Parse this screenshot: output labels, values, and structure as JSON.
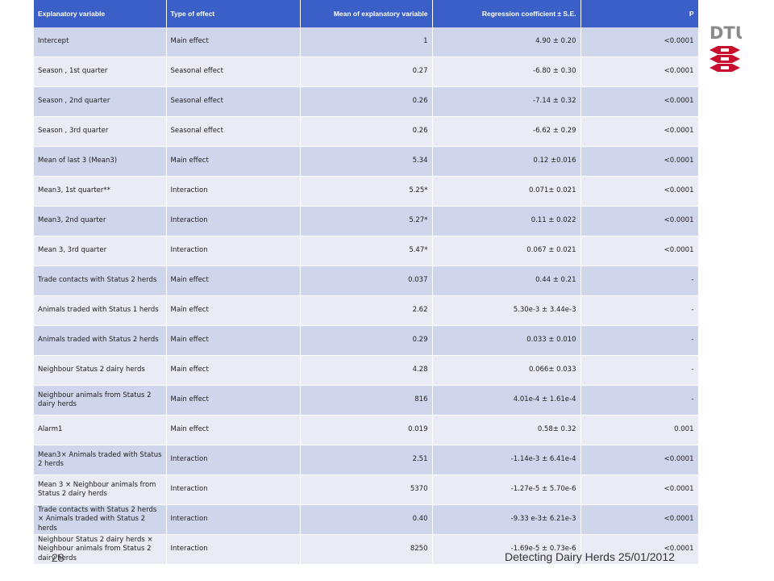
{
  "headers": [
    "Explanatory variable",
    "Type of effect",
    "Mean of explanatory variable",
    "Regression coefficient ± S.E.",
    "P"
  ],
  "rows": [
    [
      "Intercept",
      "Main effect",
      "1",
      "4.90 ± 0.20",
      "<0.0001"
    ],
    [
      "Season , 1st quarter",
      "Seasonal effect",
      "0.27",
      "-6.80 ± 0.30",
      "<0.0001"
    ],
    [
      "Season , 2nd quarter",
      "Seasonal effect",
      "0.26",
      "-7.14 ± 0.32",
      "<0.0001"
    ],
    [
      "Season , 3rd quarter",
      "Seasonal effect",
      "0.26",
      "-6.62 ± 0.29",
      "<0.0001"
    ],
    [
      "Mean of last 3 (Mean3)",
      "Main effect",
      "5.34",
      "0.12 ±0.016",
      "<0.0001"
    ],
    [
      "Mean3, 1st quarter**",
      "Interaction",
      "5.25*",
      "0.071± 0.021",
      "<0.0001"
    ],
    [
      "Mean3, 2nd quarter",
      "Interaction",
      "5.27*",
      "0.11 ± 0.022",
      "<0.0001"
    ],
    [
      "Mean 3, 3rd quarter",
      "Interaction",
      "5.47*",
      "0.067 ± 0.021",
      "<0.0001"
    ],
    [
      "Trade contacts with Status 2 herds",
      "Main effect",
      "0.037",
      "0.44 ± 0.21",
      "-"
    ],
    [
      "Animals traded with Status 1 herds",
      "Main effect",
      "2.62",
      "5.30e-3 ± 3.44e-3",
      "-"
    ],
    [
      "Animals traded with Status 2 herds",
      "Main effect",
      "0.29",
      "0.033 ± 0.010",
      "-"
    ],
    [
      "Neighbour Status 2 dairy herds",
      "Main effect",
      "4.28",
      "0.066± 0.033",
      "-"
    ],
    [
      "Neighbour animals from Status 2 dairy herds",
      "Main effect",
      "816",
      "4.01e-4 ± 1.61e-4",
      "-"
    ],
    [
      "Alarm1",
      "Main effect",
      "0.019",
      "0.58± 0.32",
      "0.001"
    ],
    [
      "Mean3× Animals traded with Status 2 herds",
      "Interaction",
      "2.51",
      "-1.14e-3 ± 6.41e-4",
      "<0.0001"
    ],
    [
      "Mean 3 × Neighbour animals from Status 2 dairy herds",
      "Interaction",
      "5370",
      "-1.27e-5 ± 5.70e-6",
      "<0.0001"
    ],
    [
      "Trade contacts with Status 2 herds × Animals traded with Status 2 herds",
      "Interaction",
      "0.40",
      "-9.33 e-3± 6.21e-3",
      "<0.0001"
    ],
    [
      "Neighbour Status 2 dairy herds × Neighbour animals from Status 2 dairy herds",
      "Interaction",
      "8250",
      "-1.69e-5 ± 0.73e-6",
      "<0.0001"
    ]
  ],
  "logo": {
    "text": "DTU",
    "color": "#c8102e"
  },
  "footer": {
    "page_number": "28",
    "text": "Detecting Dairy Herds  25/01/2012"
  }
}
